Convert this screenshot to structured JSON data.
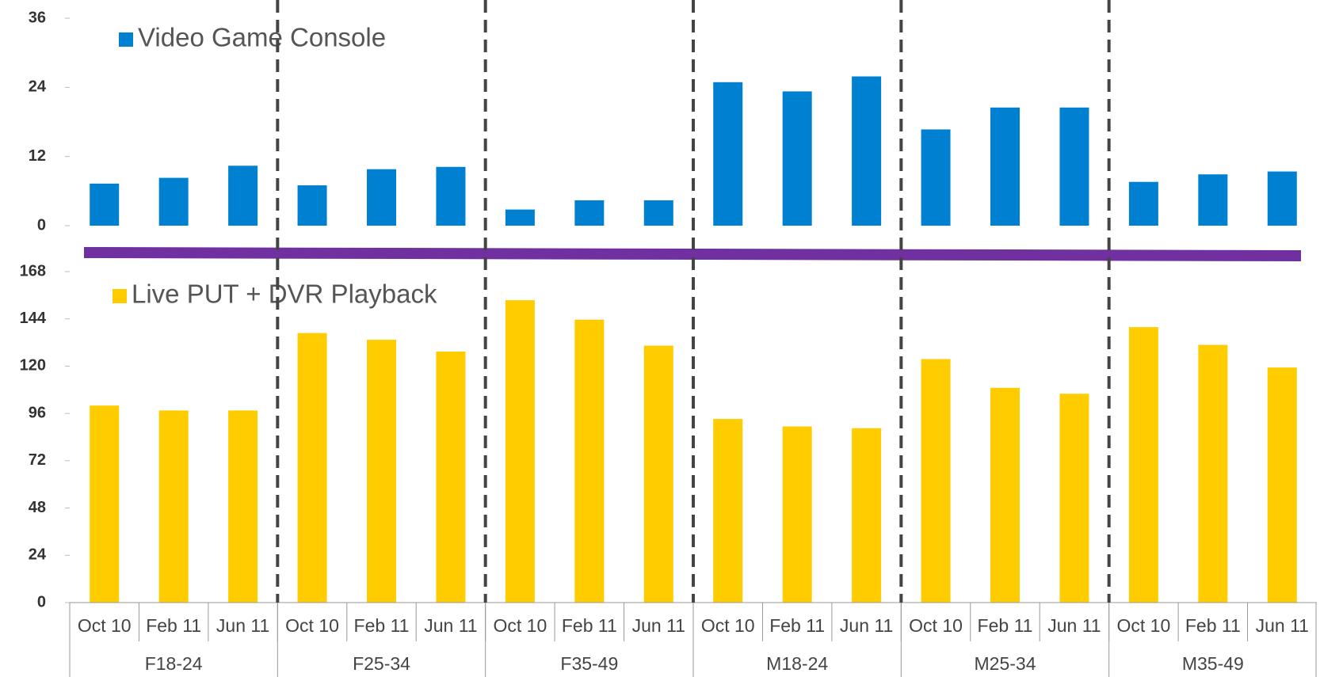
{
  "chart_data": [
    {
      "type": "bar",
      "series": [
        {
          "name": "Video Game Console",
          "color": "#0080d0",
          "values": [
            7.3,
            8.3,
            10.4,
            7.0,
            9.8,
            10.2,
            2.8,
            4.4,
            4.4,
            24.9,
            23.3,
            25.9,
            16.7,
            20.5,
            20.5,
            7.6,
            8.9,
            9.4
          ]
        }
      ],
      "ylim": [
        0,
        36
      ],
      "yticks": [
        0,
        12,
        24,
        36
      ]
    },
    {
      "type": "bar",
      "categories": [
        "Oct 10",
        "Feb 11",
        "Jun 11",
        "Oct 10",
        "Feb 11",
        "Jun 11",
        "Oct 10",
        "Feb 11",
        "Jun 11",
        "Oct 10",
        "Feb 11",
        "Jun 11",
        "Oct 10",
        "Feb 11",
        "Jun 11",
        "Oct 10",
        "Feb 11",
        "Jun 11"
      ],
      "groups": [
        "F18-24",
        "F25-34",
        "F35-49",
        "M18-24",
        "M25-34",
        "M35-49"
      ],
      "series": [
        {
          "name": "Live PUT + DVR Playback",
          "color": "#ffcc00",
          "values": [
            100,
            97.5,
            97.5,
            136.8,
            133.4,
            127.4,
            153.5,
            143.6,
            130.4,
            93.2,
            89.4,
            88.5,
            123.6,
            109,
            106,
            139.8,
            130.8,
            119.3
          ]
        }
      ],
      "ylim": [
        0,
        168
      ],
      "yticks": [
        0,
        24,
        48,
        72,
        96,
        120,
        144,
        168
      ]
    }
  ]
}
